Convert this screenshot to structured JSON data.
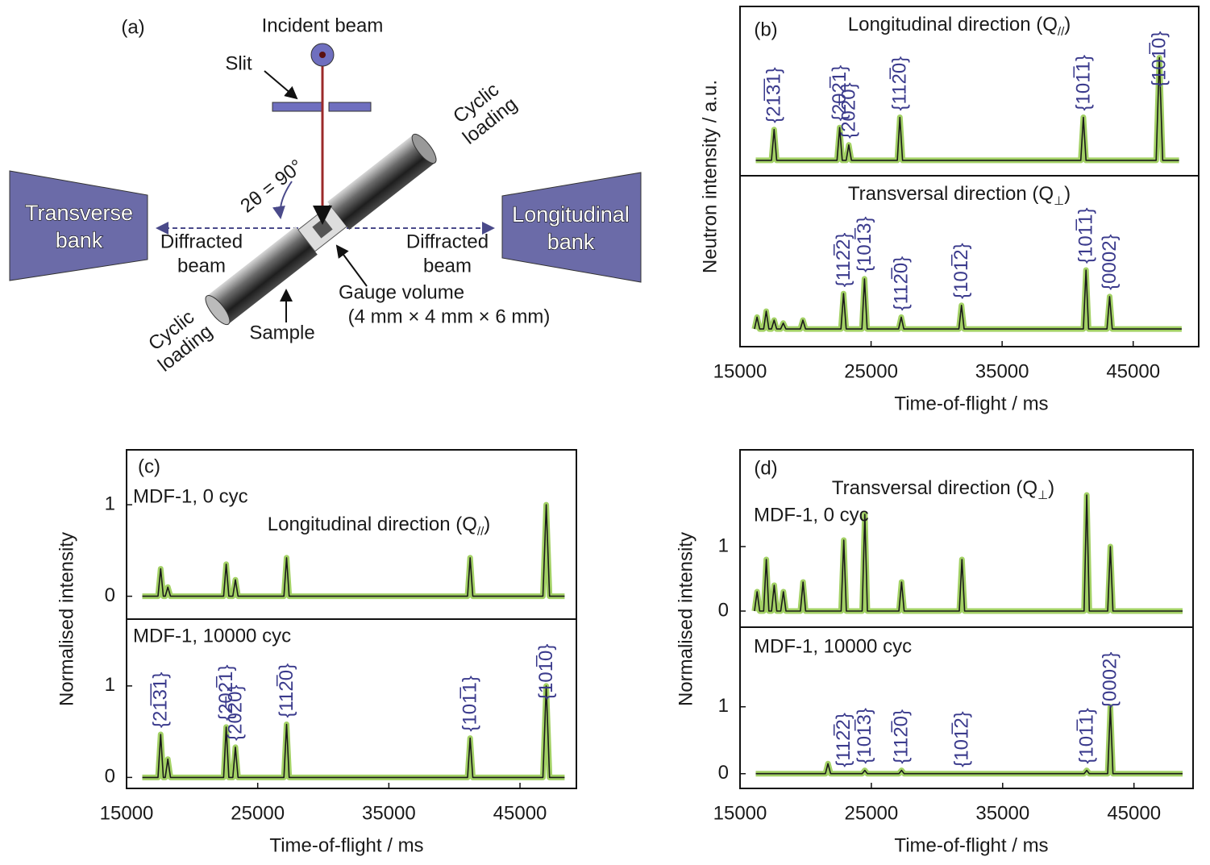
{
  "diagram": {
    "label": "(a)",
    "incident_beam": "Incident beam",
    "slit": "Slit",
    "cyclic_loading_top": [
      "Cyclic",
      "loading"
    ],
    "angle": "2θ = 90°",
    "transverse_bank": [
      "Transverse",
      "bank"
    ],
    "longitudinal_bank": [
      "Longitudinal",
      "bank"
    ],
    "diffracted_beam_left": [
      "Diffracted",
      "beam"
    ],
    "diffracted_beam_right": [
      "Diffracted",
      "beam"
    ],
    "gauge_volume": "Gauge volume",
    "gauge_size": "(4 mm × 4 mm × 6 mm)",
    "sample": "Sample",
    "cyclic_loading_bottom": [
      "Cyclic",
      "loading"
    ]
  },
  "chart_data": [
    {
      "type": "line",
      "panel_label": "(b)",
      "ylabel": "Neutron intensity / a.u.",
      "xlabel": "Time-of-flight / ms",
      "xlim": [
        15000,
        50000
      ],
      "xticks": [
        15000,
        25000,
        35000,
        45000
      ],
      "subplots": [
        {
          "title": "Longitudinal direction (Q",
          "title_sub": "//",
          "title_end": ")",
          "ylim": [
            -0.15,
            1.5
          ],
          "color": "#1a1a1a",
          "marker_color": "#8cc63f",
          "x": [
            16200,
            17400,
            17600,
            17800,
            22400,
            22600,
            22800,
            23100,
            23300,
            23500,
            27000,
            27200,
            27400,
            41000,
            41200,
            41400,
            46750,
            47000,
            47250,
            48500
          ],
          "values": [
            0,
            0,
            0.3,
            0,
            0,
            0.32,
            0,
            0,
            0.15,
            0,
            0,
            0.42,
            0,
            0,
            0.42,
            0,
            0,
            1,
            0,
            0
          ],
          "annotations": [
            {
              "text": "{21̅3̅1}",
              "x": 17600
            },
            {
              "text": "{202̅1}",
              "x": 22600
            },
            {
              "text": "{202̅0}",
              "x": 23300
            },
            {
              "text": "{112̅0}",
              "x": 27200
            },
            {
              "text": "{101̅1}",
              "x": 41200
            },
            {
              "text": "{101̅0}",
              "x": 47000
            }
          ]
        },
        {
          "title": "Transversal direction (Q",
          "title_sub": "⊥",
          "title_end": ")",
          "ylim": [
            -0.3,
            2.6
          ],
          "color": "#1a1a1a",
          "marker_color": "#8cc63f",
          "x": [
            16100,
            16300,
            16500,
            16800,
            17000,
            17200,
            17400,
            17600,
            17800,
            18100,
            18300,
            18500,
            19600,
            19800,
            20000,
            22700,
            22900,
            23100,
            24300,
            24500,
            24700,
            27100,
            27300,
            27500,
            31700,
            31900,
            32100,
            41200,
            41400,
            41600,
            43000,
            43200,
            43400,
            48700
          ],
          "values": [
            0,
            0.2,
            0,
            0,
            0.3,
            0,
            0,
            0.15,
            0,
            0,
            0.1,
            0,
            0,
            0.15,
            0,
            0,
            0.6,
            0,
            0,
            0.85,
            0,
            0,
            0.2,
            0,
            0,
            0.4,
            0,
            0,
            1,
            0,
            0,
            0.55,
            0,
            0
          ],
          "annotations": [
            {
              "text": "{112̅2}",
              "x": 22900
            },
            {
              "text": "{101̅3}",
              "x": 24500
            },
            {
              "text": "{112̅0}",
              "x": 27300
            },
            {
              "text": "{101̅2}",
              "x": 31900
            },
            {
              "text": "{101̅1}",
              "x": 41400
            },
            {
              "text": "{0002}",
              "x": 43200
            }
          ]
        }
      ]
    },
    {
      "type": "line",
      "panel_label": "(c)",
      "ylabel": "Normalised intensity",
      "xlabel": "Time-of-flight / ms",
      "xlim": [
        15000,
        49300
      ],
      "xticks": [
        15000,
        25000,
        35000,
        45000
      ],
      "subplots": [
        {
          "note": "MDF-1, 0 cyc",
          "title": "Longitudinal direction (Q",
          "title_sub": "//",
          "title_end": ")",
          "ylim": [
            -0.25,
            1.6
          ],
          "yticks": [
            0,
            1
          ],
          "color": "#1a1a1a",
          "marker_color": "#8cc63f",
          "x": [
            16200,
            17400,
            17600,
            17800,
            17950,
            18150,
            18350,
            22400,
            22600,
            22800,
            23100,
            23300,
            23500,
            27000,
            27200,
            27400,
            41000,
            41200,
            41400,
            46750,
            47000,
            47250,
            48400
          ],
          "values": [
            0,
            0,
            0.3,
            0,
            0,
            0.1,
            0,
            0,
            0.35,
            0,
            0,
            0.18,
            0,
            0,
            0.42,
            0,
            0,
            0.42,
            0,
            0,
            1,
            0,
            0
          ]
        },
        {
          "note": "MDF-1, 10000 cyc",
          "ylim": [
            -0.12,
            1.73
          ],
          "yticks": [
            0,
            1
          ],
          "color": "#1a1a1a",
          "marker_color": "#8cc63f",
          "x": [
            16200,
            17400,
            17600,
            17800,
            17950,
            18150,
            18350,
            22400,
            22600,
            22800,
            23100,
            23300,
            23500,
            27000,
            27200,
            27400,
            41000,
            41200,
            41400,
            46750,
            47000,
            47250,
            48400
          ],
          "values": [
            0,
            0,
            0.47,
            0,
            0,
            0.2,
            0,
            0,
            0.55,
            0,
            0,
            0.33,
            0,
            0,
            0.58,
            0,
            0,
            0.43,
            0,
            0,
            1,
            0,
            0
          ],
          "annotations": [
            {
              "text": "{21̅3̅1}",
              "x": 17600
            },
            {
              "text": "{202̅1}",
              "x": 22600
            },
            {
              "text": "{202̅0}",
              "x": 23300
            },
            {
              "text": "{112̅0}",
              "x": 27200
            },
            {
              "text": "{101̅1}",
              "x": 41200
            },
            {
              "text": "{101̅0}",
              "x": 47000
            }
          ]
        }
      ]
    },
    {
      "type": "line",
      "panel_label": "(d)",
      "ylabel": "Normalised intensity",
      "xlabel": "Time-of-flight / ms",
      "xlim": [
        15000,
        49500
      ],
      "xticks": [
        15000,
        25000,
        35000,
        45000
      ],
      "subplots": [
        {
          "note": "MDF-1, 0 cyc",
          "title": "Transversal direction (Q",
          "title_sub": "⊥",
          "title_end": ")",
          "ylim": [
            -0.25,
            2.5
          ],
          "yticks": [
            0,
            1
          ],
          "color": "#1a1a1a",
          "marker_color": "#8cc63f",
          "x": [
            16100,
            16300,
            16500,
            16800,
            17000,
            17200,
            17400,
            17600,
            17800,
            18100,
            18300,
            18500,
            19600,
            19800,
            20000,
            22700,
            22900,
            23100,
            24300,
            24500,
            24700,
            27100,
            27300,
            27500,
            31700,
            31900,
            32100,
            41200,
            41400,
            41600,
            43000,
            43200,
            43400,
            48700
          ],
          "values": [
            0,
            0.3,
            0,
            0,
            0.8,
            0,
            0,
            0.4,
            0,
            0,
            0.3,
            0,
            0,
            0.45,
            0,
            0,
            1.1,
            0,
            0,
            1.5,
            0,
            0,
            0.45,
            0,
            0,
            0.8,
            0,
            0,
            1.8,
            0,
            0,
            1,
            0,
            0
          ]
        },
        {
          "note": "MDF-1, 10000 cyc",
          "ylim": [
            -0.22,
            2.19
          ],
          "yticks": [
            0,
            1
          ],
          "color": "#1a1a1a",
          "marker_color": "#8cc63f",
          "x": [
            16200,
            21500,
            21700,
            21900,
            24300,
            24500,
            24700,
            27100,
            27300,
            27500,
            41200,
            41400,
            41600,
            43000,
            43200,
            43400,
            48700
          ],
          "values": [
            0,
            0,
            0.15,
            0,
            0,
            0.05,
            0,
            0,
            0.05,
            0,
            0,
            0.05,
            0,
            0,
            1,
            0,
            0
          ],
          "annotations": [
            {
              "text": "{112̅2}",
              "x": 22900
            },
            {
              "text": "{101̅3}",
              "x": 24500
            },
            {
              "text": "{112̅0}",
              "x": 27300
            },
            {
              "text": "{101̅2}",
              "x": 31900
            },
            {
              "text": "{101̅1}",
              "x": 41400
            },
            {
              "text": "{0002}",
              "x": 43200
            }
          ]
        }
      ]
    }
  ]
}
